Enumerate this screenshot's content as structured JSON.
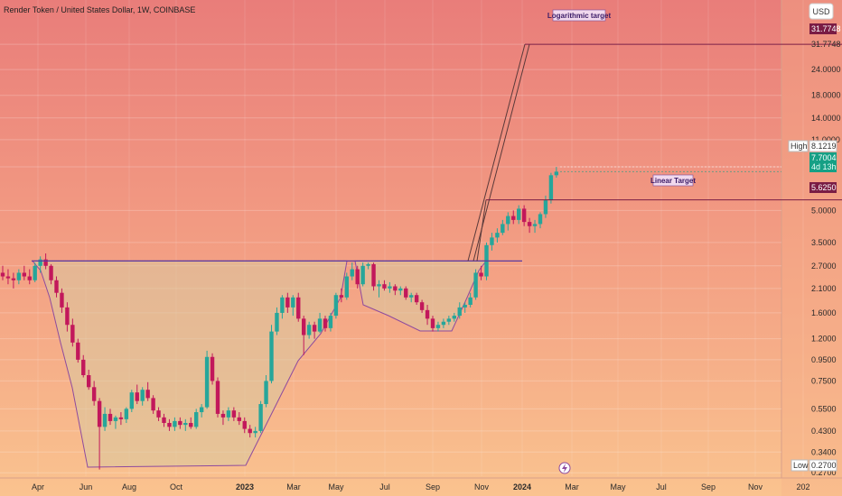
{
  "header": {
    "title": "Render Token / United States Dollar, 1W, COINBASE",
    "currency_button": "USD"
  },
  "price_tags": {
    "high_label": "High",
    "high_value": "8.1219",
    "current_value": "7.7004",
    "countdown": "4d 13h",
    "log_target_value": "31.7748",
    "linear_target_value": "5.6250",
    "low_label": "Low",
    "low_value": "0.2700"
  },
  "annotations": {
    "log_target": "Logarithmic target",
    "linear_target": "Linear Target"
  },
  "colors": {
    "up": "#26a69a",
    "down": "#c2185b",
    "bg_top": "#e97d7a",
    "bg_bottom": "#fac38f",
    "pattern_fill": "#d9c9a1",
    "pattern_line": "#8e4a9e",
    "neckline": "#5b3aa0",
    "target_tag": "#7a1c44",
    "current_tag": "#16a085"
  },
  "chart_data": {
    "type": "candlestick",
    "scale": "log",
    "ylim": [
      0.26,
      48
    ],
    "y_ticks": [
      "31.7748",
      "24.0000",
      "18.0000",
      "14.0000",
      "11.0000",
      "8.1219",
      "5.0000",
      "3.5000",
      "2.7000",
      "2.1000",
      "1.6000",
      "1.2000",
      "0.9500",
      "0.7500",
      "0.5500",
      "0.4300",
      "0.3400",
      "0.2700"
    ],
    "x_ticks": [
      "Apr",
      "Jun",
      "Aug",
      "Oct",
      "2023",
      "Mar",
      "May",
      "Jul",
      "Sep",
      "Nov",
      "2024",
      "Mar",
      "May",
      "Jul",
      "Sep",
      "Nov",
      "202"
    ],
    "candles_ohlc": [
      [
        2.5,
        2.7,
        2.3,
        2.4
      ],
      [
        2.4,
        2.6,
        2.2,
        2.35
      ],
      [
        2.35,
        2.5,
        2.1,
        2.3
      ],
      [
        2.3,
        2.6,
        2.2,
        2.5
      ],
      [
        2.5,
        2.7,
        2.3,
        2.4
      ],
      [
        2.4,
        2.6,
        2.2,
        2.3
      ],
      [
        2.3,
        2.8,
        2.25,
        2.7
      ],
      [
        2.7,
        3.0,
        2.5,
        2.9
      ],
      [
        2.9,
        3.1,
        2.6,
        2.7
      ],
      [
        2.7,
        2.75,
        2.2,
        2.3
      ],
      [
        2.3,
        2.4,
        1.9,
        2.0
      ],
      [
        2.0,
        2.1,
        1.6,
        1.7
      ],
      [
        1.7,
        1.8,
        1.3,
        1.4
      ],
      [
        1.4,
        1.5,
        1.1,
        1.15
      ],
      [
        1.15,
        1.2,
        0.92,
        0.95
      ],
      [
        0.95,
        1.0,
        0.78,
        0.8
      ],
      [
        0.8,
        0.85,
        0.68,
        0.7
      ],
      [
        0.7,
        0.75,
        0.57,
        0.6
      ],
      [
        0.6,
        0.62,
        0.28,
        0.45
      ],
      [
        0.45,
        0.56,
        0.43,
        0.52
      ],
      [
        0.52,
        0.55,
        0.46,
        0.48
      ],
      [
        0.48,
        0.51,
        0.44,
        0.5
      ],
      [
        0.5,
        0.53,
        0.46,
        0.49
      ],
      [
        0.49,
        0.56,
        0.47,
        0.55
      ],
      [
        0.55,
        0.68,
        0.53,
        0.66
      ],
      [
        0.66,
        0.72,
        0.58,
        0.6
      ],
      [
        0.6,
        0.7,
        0.57,
        0.68
      ],
      [
        0.68,
        0.74,
        0.6,
        0.62
      ],
      [
        0.62,
        0.64,
        0.52,
        0.54
      ],
      [
        0.54,
        0.56,
        0.48,
        0.5
      ],
      [
        0.5,
        0.52,
        0.45,
        0.47
      ],
      [
        0.47,
        0.49,
        0.43,
        0.45
      ],
      [
        0.45,
        0.5,
        0.43,
        0.48
      ],
      [
        0.48,
        0.5,
        0.44,
        0.46
      ],
      [
        0.46,
        0.49,
        0.43,
        0.47
      ],
      [
        0.47,
        0.5,
        0.44,
        0.45
      ],
      [
        0.45,
        0.55,
        0.44,
        0.53
      ],
      [
        0.53,
        0.58,
        0.5,
        0.56
      ],
      [
        0.56,
        1.05,
        0.55,
        0.98
      ],
      [
        0.98,
        1.02,
        0.72,
        0.75
      ],
      [
        0.75,
        0.78,
        0.5,
        0.52
      ],
      [
        0.52,
        0.54,
        0.46,
        0.5
      ],
      [
        0.5,
        0.56,
        0.48,
        0.54
      ],
      [
        0.54,
        0.56,
        0.48,
        0.5
      ],
      [
        0.5,
        0.53,
        0.46,
        0.48
      ],
      [
        0.48,
        0.5,
        0.42,
        0.44
      ],
      [
        0.44,
        0.46,
        0.4,
        0.42
      ],
      [
        0.42,
        0.45,
        0.4,
        0.43
      ],
      [
        0.43,
        0.6,
        0.42,
        0.58
      ],
      [
        0.58,
        0.8,
        0.56,
        0.75
      ],
      [
        0.75,
        1.4,
        0.73,
        1.3
      ],
      [
        1.3,
        1.7,
        1.25,
        1.6
      ],
      [
        1.6,
        1.95,
        1.5,
        1.9
      ],
      [
        1.9,
        2.0,
        1.6,
        1.7
      ],
      [
        1.7,
        1.95,
        1.55,
        1.9
      ],
      [
        1.9,
        2.0,
        1.45,
        1.5
      ],
      [
        1.5,
        1.55,
        1.0,
        1.25
      ],
      [
        1.25,
        1.45,
        1.2,
        1.4
      ],
      [
        1.4,
        1.45,
        1.2,
        1.3
      ],
      [
        1.3,
        1.6,
        1.28,
        1.5
      ],
      [
        1.5,
        1.55,
        1.3,
        1.35
      ],
      [
        1.35,
        1.6,
        1.3,
        1.55
      ],
      [
        1.55,
        2.0,
        1.5,
        1.95
      ],
      [
        1.95,
        2.1,
        1.8,
        1.9
      ],
      [
        1.9,
        2.5,
        1.85,
        2.4
      ],
      [
        2.4,
        2.8,
        2.3,
        2.6
      ],
      [
        2.6,
        2.7,
        2.1,
        2.2
      ],
      [
        2.2,
        2.8,
        2.15,
        2.7
      ],
      [
        2.7,
        2.8,
        2.6,
        2.75
      ],
      [
        2.75,
        2.8,
        2.05,
        2.15
      ],
      [
        2.15,
        2.3,
        1.9,
        2.2
      ],
      [
        2.2,
        2.3,
        2.05,
        2.1
      ],
      [
        2.1,
        2.25,
        2.0,
        2.15
      ],
      [
        2.15,
        2.2,
        1.95,
        2.05
      ],
      [
        2.05,
        2.15,
        1.95,
        2.1
      ],
      [
        2.1,
        2.15,
        1.85,
        1.9
      ],
      [
        1.9,
        2.0,
        1.8,
        1.95
      ],
      [
        1.95,
        2.0,
        1.75,
        1.8
      ],
      [
        1.8,
        1.85,
        1.6,
        1.65
      ],
      [
        1.65,
        1.75,
        1.4,
        1.5
      ],
      [
        1.5,
        1.55,
        1.3,
        1.35
      ],
      [
        1.35,
        1.45,
        1.3,
        1.4
      ],
      [
        1.4,
        1.5,
        1.35,
        1.45
      ],
      [
        1.45,
        1.55,
        1.4,
        1.5
      ],
      [
        1.5,
        1.6,
        1.45,
        1.55
      ],
      [
        1.55,
        1.8,
        1.5,
        1.7
      ],
      [
        1.7,
        1.8,
        1.6,
        1.75
      ],
      [
        1.75,
        2.0,
        1.7,
        1.9
      ],
      [
        1.9,
        2.6,
        1.85,
        2.5
      ],
      [
        2.5,
        2.7,
        2.3,
        2.4
      ],
      [
        2.4,
        3.5,
        2.3,
        3.4
      ],
      [
        3.4,
        3.9,
        3.2,
        3.7
      ],
      [
        3.7,
        4.1,
        3.5,
        3.9
      ],
      [
        3.9,
        4.5,
        3.8,
        4.3
      ],
      [
        4.3,
        4.9,
        4.0,
        4.7
      ],
      [
        4.7,
        5.0,
        4.3,
        4.5
      ],
      [
        4.5,
        5.3,
        4.3,
        5.1
      ],
      [
        5.1,
        5.3,
        4.2,
        4.4
      ],
      [
        4.4,
        4.6,
        3.9,
        4.2
      ],
      [
        4.2,
        4.5,
        3.9,
        4.3
      ],
      [
        4.3,
        4.9,
        4.1,
        4.8
      ],
      [
        4.8,
        5.9,
        4.6,
        5.6
      ],
      [
        5.6,
        7.6,
        5.4,
        7.4
      ],
      [
        7.4,
        8.12,
        7.2,
        7.7
      ]
    ],
    "levels": {
      "neckline": 2.85,
      "logarithmic_target": 31.7748,
      "linear_target": 5.625
    }
  }
}
